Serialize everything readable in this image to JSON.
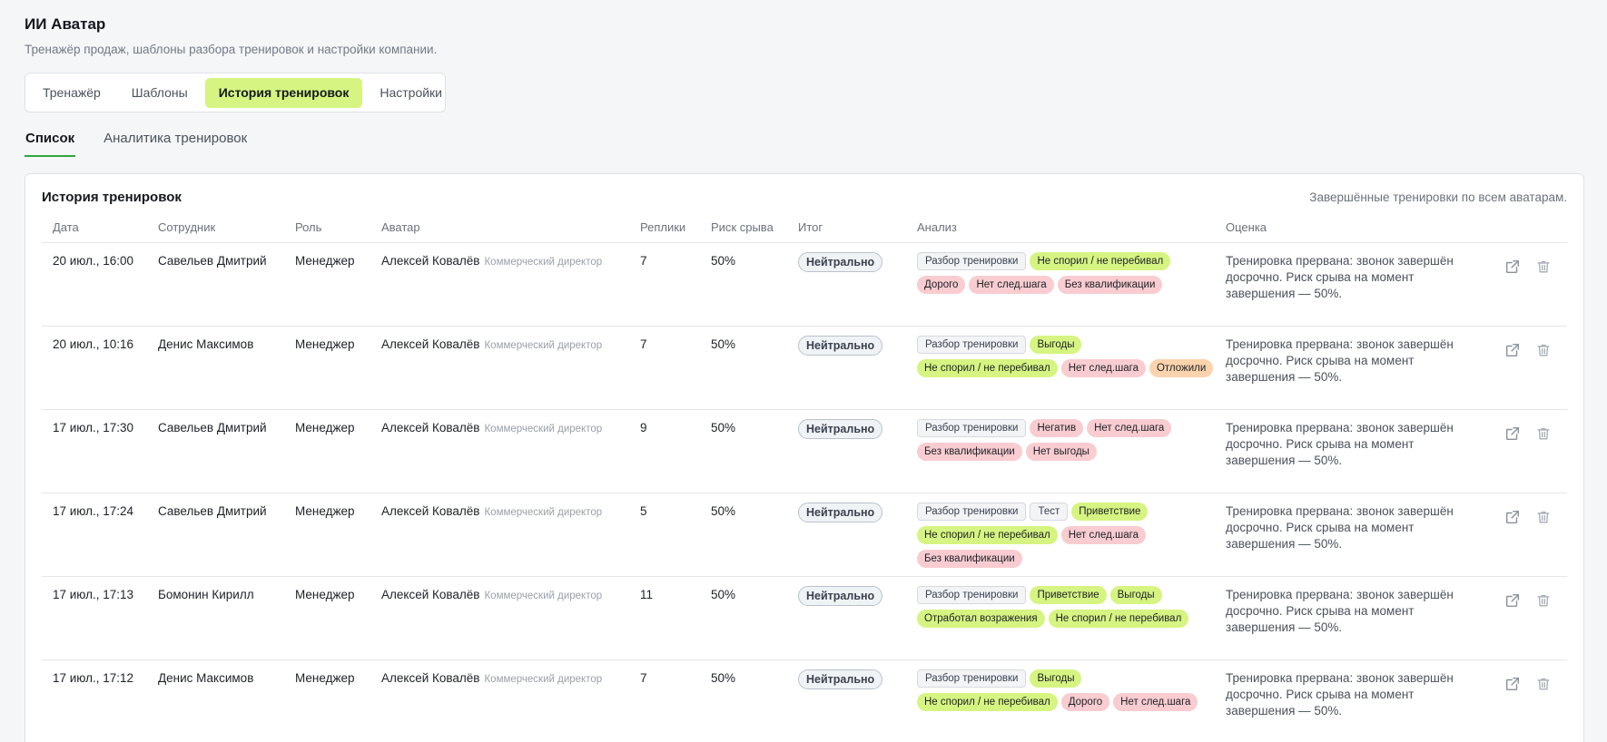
{
  "app": {
    "title": "ИИ Аватар",
    "subtitle": "Тренажёр продаж, шаблоны разбора тренировок и настройки компании."
  },
  "main_tabs": [
    {
      "label": "Тренажёр",
      "active": false
    },
    {
      "label": "Шаблоны",
      "active": false
    },
    {
      "label": "История тренировок",
      "active": true
    },
    {
      "label": "Настройки",
      "active": false
    }
  ],
  "sub_tabs": [
    {
      "label": "Список",
      "active": true
    },
    {
      "label": "Аналитика тренировок",
      "active": false
    }
  ],
  "card": {
    "title": "История тренировок",
    "note": "Завершённые тренировки по всем аватарам."
  },
  "columns": {
    "date": "Дата",
    "employee": "Сотрудник",
    "role": "Роль",
    "avatar": "Аватар",
    "replies": "Реплики",
    "risk": "Риск срыва",
    "outcome": "Итог",
    "analysis": "Анализ",
    "assessment": "Оценка"
  },
  "colors": {
    "accent_green": "#d6f481",
    "tag_red": "#f8ccd0",
    "tag_orange": "#fbd3ac",
    "active_underline": "#2fa53c"
  },
  "rows": [
    {
      "date": "20 июл., 16:00",
      "employee": "Савельев Дмитрий",
      "role": "Менеджер",
      "avatar": "Алексей Ковалёв",
      "avatar_role": "Коммерческий директор",
      "replies": "7",
      "risk": "50%",
      "outcome": "Нейтрально",
      "tags": [
        {
          "label": "Разбор тренировки",
          "kind": "gray"
        },
        {
          "label": "Не спорил / не перебивал",
          "kind": "green"
        },
        {
          "label": "Дорого",
          "kind": "red"
        },
        {
          "label": "Нет след.шага",
          "kind": "red"
        },
        {
          "label": "Без квалификации",
          "kind": "red"
        }
      ],
      "assessment": "Тренировка прервана: звонок завершён досрочно. Риск срыва на момент завершения — 50%."
    },
    {
      "date": "20 июл., 10:16",
      "employee": "Денис Максимов",
      "role": "Менеджер",
      "avatar": "Алексей Ковалёв",
      "avatar_role": "Коммерческий директор",
      "replies": "7",
      "risk": "50%",
      "outcome": "Нейтрально",
      "tags": [
        {
          "label": "Разбор тренировки",
          "kind": "gray"
        },
        {
          "label": "Выгоды",
          "kind": "green"
        },
        {
          "label": "Не спорил / не перебивал",
          "kind": "green"
        },
        {
          "label": "Нет след.шага",
          "kind": "red"
        },
        {
          "label": "Отложили",
          "kind": "orange"
        }
      ],
      "assessment": "Тренировка прервана: звонок завершён досрочно. Риск срыва на момент завершения — 50%."
    },
    {
      "date": "17 июл., 17:30",
      "employee": "Савельев Дмитрий",
      "role": "Менеджер",
      "avatar": "Алексей Ковалёв",
      "avatar_role": "Коммерческий директор",
      "replies": "9",
      "risk": "50%",
      "outcome": "Нейтрально",
      "tags": [
        {
          "label": "Разбор тренировки",
          "kind": "gray"
        },
        {
          "label": "Негатив",
          "kind": "red"
        },
        {
          "label": "Нет след.шага",
          "kind": "red"
        },
        {
          "label": "Без квалификации",
          "kind": "red"
        },
        {
          "label": "Нет выгоды",
          "kind": "red"
        }
      ],
      "assessment": "Тренировка прервана: звонок завершён досрочно. Риск срыва на момент завершения — 50%."
    },
    {
      "date": "17 июл., 17:24",
      "employee": "Савельев Дмитрий",
      "role": "Менеджер",
      "avatar": "Алексей Ковалёв",
      "avatar_role": "Коммерческий директор",
      "replies": "5",
      "risk": "50%",
      "outcome": "Нейтрально",
      "tags": [
        {
          "label": "Разбор тренировки",
          "kind": "gray"
        },
        {
          "label": "Тест",
          "kind": "gray"
        },
        {
          "label": "Приветствие",
          "kind": "green"
        },
        {
          "label": "Не спорил / не перебивал",
          "kind": "green"
        },
        {
          "label": "Нет след.шага",
          "kind": "red"
        },
        {
          "label": "Без квалификации",
          "kind": "red"
        }
      ],
      "assessment": "Тренировка прервана: звонок завершён досрочно. Риск срыва на момент завершения — 50%."
    },
    {
      "date": "17 июл., 17:13",
      "employee": "Бомонин Кирилл",
      "role": "Менеджер",
      "avatar": "Алексей Ковалёв",
      "avatar_role": "Коммерческий директор",
      "replies": "11",
      "risk": "50%",
      "outcome": "Нейтрально",
      "tags": [
        {
          "label": "Разбор тренировки",
          "kind": "gray"
        },
        {
          "label": "Приветствие",
          "kind": "green"
        },
        {
          "label": "Выгоды",
          "kind": "green"
        },
        {
          "label": "Отработал возражения",
          "kind": "green"
        },
        {
          "label": "Не спорил / не перебивал",
          "kind": "green"
        }
      ],
      "assessment": "Тренировка прервана: звонок завершён досрочно. Риск срыва на момент завершения — 50%."
    },
    {
      "date": "17 июл., 17:12",
      "employee": "Денис Максимов",
      "role": "Менеджер",
      "avatar": "Алексей Ковалёв",
      "avatar_role": "Коммерческий директор",
      "replies": "7",
      "risk": "50%",
      "outcome": "Нейтрально",
      "tags": [
        {
          "label": "Разбор тренировки",
          "kind": "gray"
        },
        {
          "label": "Выгоды",
          "kind": "green"
        },
        {
          "label": "Не спорил / не перебивал",
          "kind": "green"
        },
        {
          "label": "Дорого",
          "kind": "red"
        },
        {
          "label": "Нет след.шага",
          "kind": "red"
        }
      ],
      "assessment": "Тренировка прервана: звонок завершён досрочно. Риск срыва на момент завершения — 50%."
    }
  ]
}
